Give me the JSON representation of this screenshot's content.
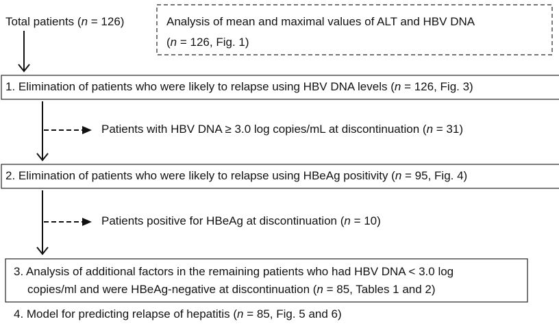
{
  "total": {
    "parts": [
      "Total patients (",
      "n",
      " = 126)"
    ]
  },
  "analysis": {
    "lines": [
      [
        "Analysis of mean and maximal values of ALT and HBV DNA"
      ],
      [
        "(",
        "n",
        " = 126, Fig. 1)"
      ]
    ]
  },
  "step1": {
    "parts": [
      "1. Elimination of patients who were likely to relapse using HBV DNA levels (",
      "n",
      " = 126, Fig. 3)"
    ]
  },
  "side1": {
    "parts": [
      "Patients with HBV DNA ≥ 3.0 log copies/mL at discontinuation (",
      "n",
      " = 31)"
    ]
  },
  "step2": {
    "parts": [
      "2. Elimination of patients who were likely to relapse using HBeAg positivity (",
      "n",
      " = 95, Fig. 4)"
    ]
  },
  "side2": {
    "parts": [
      "Patients positive for HBeAg at discontinuation (",
      "n",
      " = 10)"
    ]
  },
  "step3": {
    "lines": [
      [
        "3. Analysis of additional factors in the remaining patients who had HBV DNA < 3.0 log"
      ],
      [
        "copies/ml and were HBeAg-negative at discontinuation (",
        "n",
        " = 85, Tables 1 and 2)"
      ]
    ]
  },
  "step4": {
    "parts": [
      "4. Model for predicting relapse of hepatitis (",
      "n",
      " = 85, Fig. 5 and 6)"
    ]
  }
}
